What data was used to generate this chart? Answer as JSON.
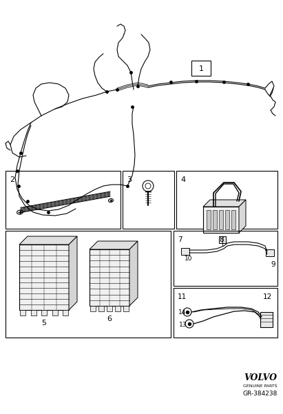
{
  "background_color": "#ffffff",
  "figure_width": 4.11,
  "figure_height": 6.01,
  "dpi": 100,
  "volvo_text": "VOLVO",
  "volvo_sub": "GENUINE PARTS",
  "part_number": "GR-384238",
  "labels": [
    "1",
    "2",
    "3",
    "4",
    "5",
    "6",
    "7",
    "8",
    "9",
    "10",
    "11",
    "12",
    "13",
    "14"
  ]
}
